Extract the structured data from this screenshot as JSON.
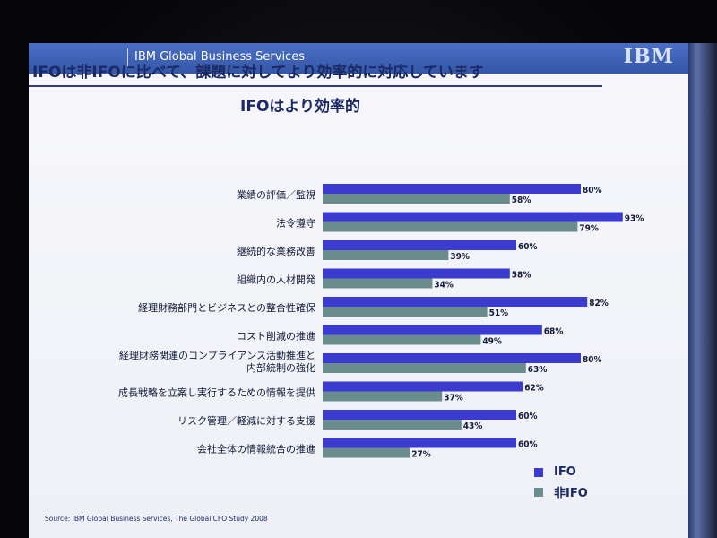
{
  "slide": {
    "brand": "IBM Global Business Services",
    "logo": "IBM",
    "title": "IFOは非IFOに比べて、課題に対してより効率的に対応しています",
    "source": "Source: IBM Global Business Services, The Global CFO Study 2008"
  },
  "colors": {
    "ifo": "#3b3bd0",
    "non_ifo": "#6a8c8c"
  },
  "chart_data": {
    "type": "bar",
    "orientation": "horizontal",
    "title": "IFOはより効率的",
    "categories": [
      "業績の評価／監視",
      "法令遵守",
      "継続的な業務改善",
      "組織内の人材開発",
      "経理財務部門とビジネスとの整合性確保",
      "コスト削減の推進",
      "経理財務関連のコンプライアンス活動推進と\n内部統制の強化",
      "成長戦略を立案し実行するための情報を提供",
      "リスク管理／軽減に対する支援",
      "会社全体の情報統合の推進"
    ],
    "series": [
      {
        "name": "IFO",
        "values": [
          80,
          93,
          60,
          58,
          82,
          68,
          80,
          62,
          60,
          60
        ]
      },
      {
        "name": "非IFO",
        "values": [
          58,
          79,
          39,
          34,
          51,
          49,
          63,
          37,
          43,
          27
        ]
      }
    ],
    "value_suffix": "%",
    "xlim": [
      0,
      100
    ],
    "legend_position": "bottom-right",
    "grid": false
  }
}
